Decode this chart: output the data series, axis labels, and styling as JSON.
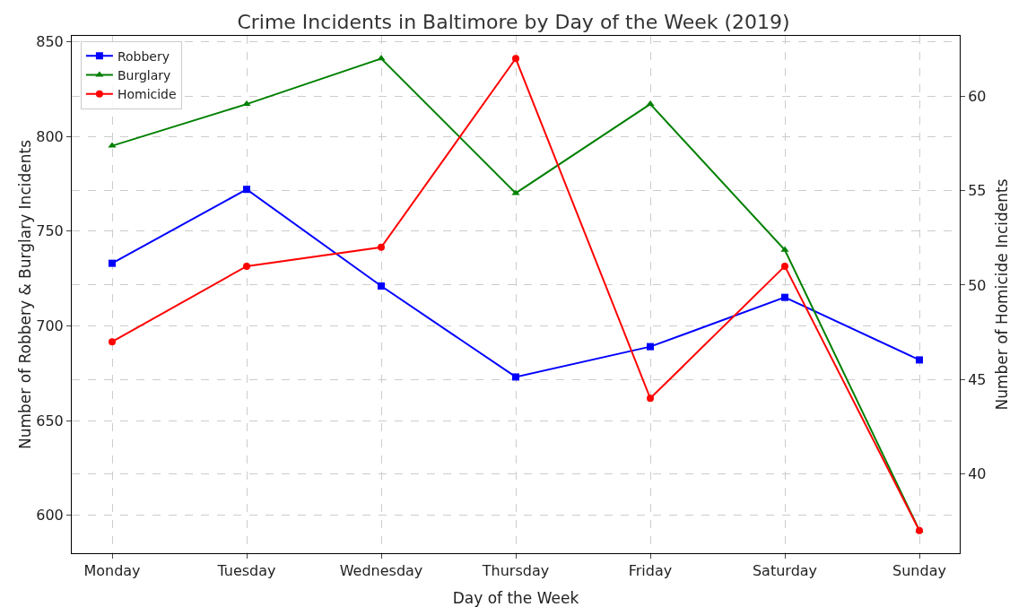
{
  "chart_data": {
    "type": "line",
    "title": "Crime Incidents in Baltimore by Day of the Week (2019)",
    "xlabel": "Day of the Week",
    "ylabel": "Number of Robbery & Burglary Incidents",
    "y2label": "Number of Homicide Incidents",
    "categories": [
      "Monday",
      "Tuesday",
      "Wednesday",
      "Thursday",
      "Friday",
      "Saturday",
      "Sunday"
    ],
    "series": [
      {
        "name": "Robbery",
        "color": "#0000ff",
        "marker": "square",
        "values": [
          733,
          772,
          721,
          673,
          689,
          715,
          682
        ]
      },
      {
        "name": "Burglary",
        "color": "#008000",
        "marker": "triangle",
        "values": [
          795,
          817,
          841,
          770,
          817,
          740,
          592
        ]
      },
      {
        "name": "Homicide",
        "color": "#ff0000",
        "marker": "circle",
        "axis": "y2",
        "values": [
          47,
          51,
          52,
          62,
          44,
          51,
          37
        ]
      }
    ],
    "ylim": [
      580,
      853
    ],
    "yticks": [
      600,
      650,
      700,
      750,
      800,
      850
    ],
    "y2lim": [
      35.8,
      63.2
    ],
    "y2ticks": [
      40,
      45,
      50,
      55,
      60
    ],
    "grid": true,
    "legend": "top left",
    "line_style": "solid"
  }
}
